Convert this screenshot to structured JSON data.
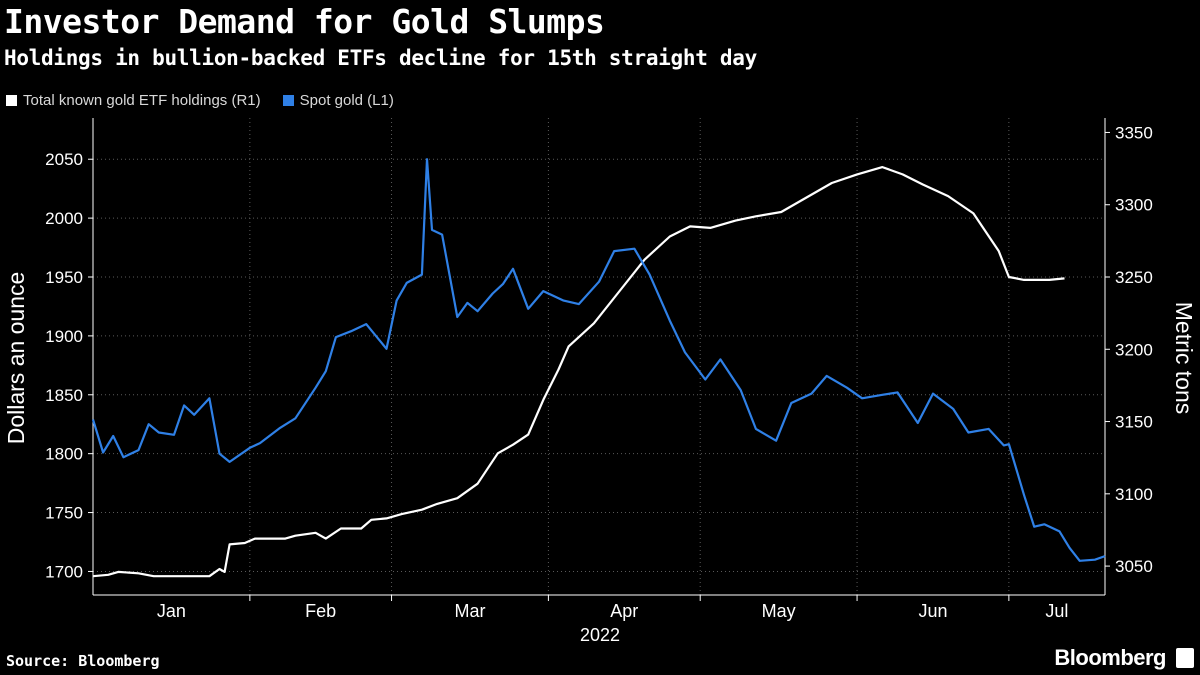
{
  "title": "Investor Demand for Gold Slumps",
  "subtitle": "Holdings in bullion-backed ETFs decline for 15th straight day",
  "source": "Source: Bloomberg",
  "brand": "Bloomberg",
  "colors": {
    "background": "#000000",
    "etf": "#ffffff",
    "spot": "#2f80e6",
    "grid": "#5a5a5a"
  },
  "chart_data": {
    "type": "line",
    "title": "Investor Demand for Gold Slumps",
    "subtitle": "Holdings in bullion-backed ETFs decline for 15th straight day",
    "x_axis": {
      "type": "date",
      "range": [
        "2022-01-01",
        "2022-07-20"
      ],
      "ticks": [
        "Jan",
        "Feb",
        "Mar",
        "Apr",
        "May",
        "Jun",
        "Jul"
      ],
      "year_label": "2022"
    },
    "y_left": {
      "label": "Dollars an ounce",
      "range": [
        1680,
        2085
      ],
      "ticks": [
        1700,
        1750,
        1800,
        1850,
        1900,
        1950,
        2000,
        2050
      ]
    },
    "y_right": {
      "label": "Metric tons",
      "range": [
        3030,
        3360
      ],
      "ticks": [
        3050,
        3100,
        3150,
        3200,
        3250,
        3300,
        3350
      ]
    },
    "grid": true,
    "legend_position": "top-left",
    "series": [
      {
        "name": "Total known gold ETF holdings (R1)",
        "axis": "right",
        "color": "#ffffff",
        "points": [
          [
            "2022-01-01",
            3043
          ],
          [
            "2022-01-04",
            3044
          ],
          [
            "2022-01-06",
            3046
          ],
          [
            "2022-01-10",
            3045
          ],
          [
            "2022-01-13",
            3043
          ],
          [
            "2022-01-17",
            3043
          ],
          [
            "2022-01-21",
            3043
          ],
          [
            "2022-01-24",
            3043
          ],
          [
            "2022-01-26",
            3048
          ],
          [
            "2022-01-27",
            3046
          ],
          [
            "2022-01-28",
            3065
          ],
          [
            "2022-01-31",
            3066
          ],
          [
            "2022-02-02",
            3069
          ],
          [
            "2022-02-04",
            3069
          ],
          [
            "2022-02-08",
            3069
          ],
          [
            "2022-02-10",
            3071
          ],
          [
            "2022-02-14",
            3073
          ],
          [
            "2022-02-16",
            3069
          ],
          [
            "2022-02-19",
            3076
          ],
          [
            "2022-02-23",
            3076
          ],
          [
            "2022-02-25",
            3082
          ],
          [
            "2022-02-28",
            3083
          ],
          [
            "2022-03-03",
            3086
          ],
          [
            "2022-03-07",
            3089
          ],
          [
            "2022-03-10",
            3093
          ],
          [
            "2022-03-14",
            3097
          ],
          [
            "2022-03-18",
            3107
          ],
          [
            "2022-03-22",
            3128
          ],
          [
            "2022-03-25",
            3134
          ],
          [
            "2022-03-28",
            3141
          ],
          [
            "2022-03-31",
            3165
          ],
          [
            "2022-04-03",
            3186
          ],
          [
            "2022-04-05",
            3202
          ],
          [
            "2022-04-10",
            3218
          ],
          [
            "2022-04-15",
            3240
          ],
          [
            "2022-04-20",
            3262
          ],
          [
            "2022-04-25",
            3278
          ],
          [
            "2022-04-29",
            3285
          ],
          [
            "2022-05-03",
            3284
          ],
          [
            "2022-05-08",
            3289
          ],
          [
            "2022-05-12",
            3292
          ],
          [
            "2022-05-17",
            3295
          ],
          [
            "2022-05-22",
            3305
          ],
          [
            "2022-05-27",
            3315
          ],
          [
            "2022-06-01",
            3321
          ],
          [
            "2022-06-06",
            3326
          ],
          [
            "2022-06-10",
            3321
          ],
          [
            "2022-06-14",
            3314
          ],
          [
            "2022-06-19",
            3306
          ],
          [
            "2022-06-24",
            3294
          ],
          [
            "2022-06-29",
            3268
          ],
          [
            "2022-07-01",
            3250
          ],
          [
            "2022-07-04",
            3248
          ],
          [
            "2022-07-09",
            3248
          ],
          [
            "2022-07-12",
            3249
          ]
        ]
      },
      {
        "name": "Spot gold (L1)",
        "axis": "left",
        "color": "#2f80e6",
        "points": [
          [
            "2022-01-01",
            1829
          ],
          [
            "2022-01-03",
            1801
          ],
          [
            "2022-01-05",
            1815
          ],
          [
            "2022-01-07",
            1797
          ],
          [
            "2022-01-10",
            1803
          ],
          [
            "2022-01-12",
            1825
          ],
          [
            "2022-01-14",
            1818
          ],
          [
            "2022-01-17",
            1816
          ],
          [
            "2022-01-19",
            1841
          ],
          [
            "2022-01-21",
            1833
          ],
          [
            "2022-01-24",
            1847
          ],
          [
            "2022-01-26",
            1800
          ],
          [
            "2022-01-28",
            1793
          ],
          [
            "2022-02-01",
            1805
          ],
          [
            "2022-02-03",
            1809
          ],
          [
            "2022-02-07",
            1822
          ],
          [
            "2022-02-10",
            1830
          ],
          [
            "2022-02-14",
            1856
          ],
          [
            "2022-02-16",
            1870
          ],
          [
            "2022-02-18",
            1899
          ],
          [
            "2022-02-21",
            1904
          ],
          [
            "2022-02-24",
            1910
          ],
          [
            "2022-02-28",
            1889
          ],
          [
            "2022-03-02",
            1930
          ],
          [
            "2022-03-04",
            1945
          ],
          [
            "2022-03-07",
            1952
          ],
          [
            "2022-03-08",
            2050
          ],
          [
            "2022-03-09",
            1990
          ],
          [
            "2022-03-11",
            1986
          ],
          [
            "2022-03-14",
            1916
          ],
          [
            "2022-03-16",
            1928
          ],
          [
            "2022-03-18",
            1921
          ],
          [
            "2022-03-21",
            1936
          ],
          [
            "2022-03-23",
            1944
          ],
          [
            "2022-03-25",
            1957
          ],
          [
            "2022-03-28",
            1923
          ],
          [
            "2022-03-31",
            1938
          ],
          [
            "2022-04-04",
            1930
          ],
          [
            "2022-04-07",
            1927
          ],
          [
            "2022-04-11",
            1946
          ],
          [
            "2022-04-14",
            1972
          ],
          [
            "2022-04-18",
            1974
          ],
          [
            "2022-04-21",
            1952
          ],
          [
            "2022-04-25",
            1913
          ],
          [
            "2022-04-28",
            1886
          ],
          [
            "2022-05-02",
            1863
          ],
          [
            "2022-05-05",
            1880
          ],
          [
            "2022-05-09",
            1854
          ],
          [
            "2022-05-12",
            1821
          ],
          [
            "2022-05-16",
            1811
          ],
          [
            "2022-05-19",
            1843
          ],
          [
            "2022-05-23",
            1851
          ],
          [
            "2022-05-26",
            1866
          ],
          [
            "2022-05-30",
            1856
          ],
          [
            "2022-06-02",
            1847
          ],
          [
            "2022-06-06",
            1850
          ],
          [
            "2022-06-09",
            1852
          ],
          [
            "2022-06-13",
            1826
          ],
          [
            "2022-06-16",
            1851
          ],
          [
            "2022-06-20",
            1838
          ],
          [
            "2022-06-23",
            1818
          ],
          [
            "2022-06-27",
            1821
          ],
          [
            "2022-06-30",
            1807
          ],
          [
            "2022-07-01",
            1808
          ],
          [
            "2022-07-04",
            1765
          ],
          [
            "2022-07-06",
            1738
          ],
          [
            "2022-07-08",
            1740
          ],
          [
            "2022-07-11",
            1734
          ],
          [
            "2022-07-13",
            1720
          ],
          [
            "2022-07-15",
            1709
          ],
          [
            "2022-07-18",
            1710
          ],
          [
            "2022-07-20",
            1713
          ]
        ]
      }
    ]
  }
}
